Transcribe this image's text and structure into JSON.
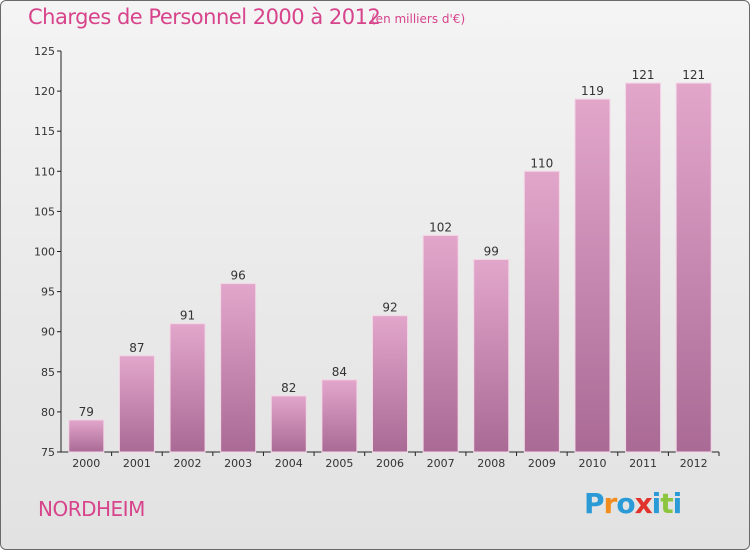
{
  "header": {
    "title": "Charges de Personnel 2000 à 2012",
    "subtitle": "(en milliers d'€)"
  },
  "footer": {
    "town": "NORDHEIM",
    "logo": {
      "letters": [
        "P",
        "r",
        "o",
        "x",
        "i",
        "t",
        "i"
      ],
      "colors": [
        "#2a9bd6",
        "#f28c1c",
        "#2a9bd6",
        "#e0332c",
        "#2a9bd6",
        "#8cc63e",
        "#2a9bd6"
      ]
    }
  },
  "colors": {
    "title": "#d7448c",
    "bar_top": "#e3a6cb",
    "bar_bottom": "#a96a95"
  },
  "chart_data": {
    "type": "bar",
    "title": "Charges de Personnel 2000 à 2012",
    "subtitle": "(en milliers d'€)",
    "categories": [
      "2000",
      "2001",
      "2002",
      "2003",
      "2004",
      "2005",
      "2006",
      "2007",
      "2008",
      "2009",
      "2010",
      "2011",
      "2012"
    ],
    "values": [
      79,
      87,
      91,
      96,
      82,
      84,
      92,
      102,
      99,
      110,
      119,
      121,
      121
    ],
    "ylim": [
      75,
      125
    ],
    "yticks": [
      75,
      80,
      85,
      90,
      95,
      100,
      105,
      110,
      115,
      120,
      125
    ],
    "grid": false,
    "show_data_labels": true
  }
}
